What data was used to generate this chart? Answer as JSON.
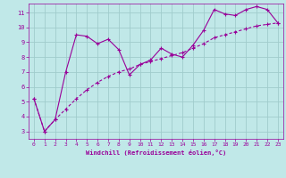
{
  "background_color": "#c0e8e8",
  "grid_color": "#a0cccc",
  "line_color": "#990099",
  "xlabel": "Windchill (Refroidissement éolien,°C)",
  "xlim": [
    -0.5,
    23.5
  ],
  "ylim": [
    2.5,
    11.6
  ],
  "yticks": [
    3,
    4,
    5,
    6,
    7,
    8,
    9,
    10,
    11
  ],
  "xticks": [
    0,
    1,
    2,
    3,
    4,
    5,
    6,
    7,
    8,
    9,
    10,
    11,
    12,
    13,
    14,
    15,
    16,
    17,
    18,
    19,
    20,
    21,
    22,
    23
  ],
  "line1_x": [
    0,
    1,
    2,
    3,
    4,
    5,
    6,
    7,
    8,
    9,
    10,
    11,
    12,
    13,
    14,
    15,
    16,
    17,
    18,
    19,
    20,
    21,
    22,
    23
  ],
  "line1_y": [
    5.2,
    3.0,
    3.8,
    7.0,
    9.5,
    9.4,
    8.9,
    9.2,
    8.5,
    6.8,
    7.5,
    7.8,
    8.6,
    8.2,
    8.0,
    8.8,
    9.8,
    11.2,
    10.9,
    10.8,
    11.2,
    11.4,
    11.2,
    10.3
  ],
  "line2_x": [
    0,
    1,
    2,
    3,
    4,
    5,
    6,
    7,
    8,
    9,
    10,
    11,
    12,
    13,
    14,
    15,
    16,
    17,
    18,
    19,
    20,
    21,
    22,
    23
  ],
  "line2_y": [
    5.2,
    3.0,
    3.8,
    4.5,
    5.2,
    5.8,
    6.3,
    6.7,
    7.0,
    7.2,
    7.5,
    7.7,
    7.9,
    8.1,
    8.3,
    8.6,
    8.9,
    9.3,
    9.5,
    9.7,
    9.9,
    10.1,
    10.2,
    10.3
  ]
}
